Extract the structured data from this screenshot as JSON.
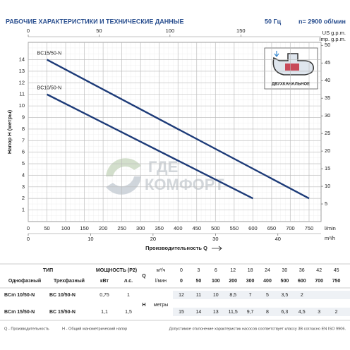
{
  "header": {
    "title": "РАБОЧИЕ ХАРАКТЕРИСТИКИ И ТЕХНИЧЕСКИЕ ДАННЫЕ",
    "frequency": "50 Гц",
    "speed": "n= 2900 об/мин"
  },
  "chart_data": {
    "type": "line",
    "xlabel": "Производительность Q",
    "ylabel": "Напор H (метры)",
    "x_unit": "l/min",
    "x3_unit": "m³/h",
    "top_unit": "US g.p.m.",
    "top2_unit": "Imp. g.p.m.",
    "inset_label": "ДВУХКАНАЛЬНОЕ",
    "watermark": [
      "ГДЕ",
      "КОМФОРТ"
    ],
    "xlim": [
      0,
      782
    ],
    "xticks": [
      0,
      50,
      100,
      150,
      200,
      250,
      300,
      350,
      400,
      450,
      500,
      550,
      600,
      650,
      700,
      750
    ],
    "x3lim": [
      0,
      46.92
    ],
    "x3ticks": [
      0,
      10,
      20,
      30,
      40
    ],
    "toplim": [
      0,
      206.6
    ],
    "topticks": [
      0,
      50,
      100,
      150
    ],
    "ylim": [
      0,
      15.5
    ],
    "yticks": [
      1,
      2,
      3,
      4,
      5,
      6,
      7,
      8,
      9,
      10,
      11,
      12,
      13,
      14
    ],
    "y2lim": [
      0,
      50.85
    ],
    "y2ticks": [
      5,
      10,
      15,
      20,
      25,
      30,
      35,
      40,
      45,
      50
    ],
    "grid": true,
    "series": [
      {
        "name": "BC15/50-N",
        "color": "#1d3b78",
        "x": [
          50,
          750
        ],
        "values": [
          14,
          2
        ]
      },
      {
        "name": "BC10/50-N",
        "color": "#1d3b78",
        "x": [
          50,
          600
        ],
        "values": [
          11,
          2
        ]
      }
    ]
  },
  "table": {
    "col_type": "ТИП",
    "col_power": "МОЩНОСТЬ (P2)",
    "q_symbol": "Q",
    "h_symbol": "H",
    "sub_headers": [
      "Однофазный",
      "Трехфазный",
      "кВт",
      "л.с."
    ],
    "q_units": [
      "м³/ч",
      "l/мин"
    ],
    "h_unit": "метры",
    "q_m3h": [
      "0",
      "3",
      "6",
      "12",
      "18",
      "24",
      "30",
      "36",
      "42",
      "45"
    ],
    "q_lmin": [
      "0",
      "50",
      "100",
      "200",
      "300",
      "400",
      "500",
      "600",
      "700",
      "750"
    ],
    "rows": [
      {
        "single": "BCm 10/50-N",
        "three": "BC 10/50-N",
        "kw": "0,75",
        "hp": "1",
        "h": [
          "12",
          "11",
          "10",
          "8,5",
          "7",
          "5",
          "3,5",
          "2"
        ]
      },
      {
        "single": "BCm 15/50-N",
        "three": "BC 15/50-N",
        "kw": "1,1",
        "hp": "1,5",
        "h": [
          "15",
          "14",
          "13",
          "11,5",
          "9,7",
          "8",
          "6,3",
          "4,5",
          "3",
          "2"
        ]
      }
    ]
  },
  "footer": {
    "q_note": "Q - Производительность",
    "h_note": "H - Общий манометрический напор",
    "tolerance": "Допустимое отклонение характеристик насосов соответствует классу 3B согласно EN ISO 9906."
  }
}
